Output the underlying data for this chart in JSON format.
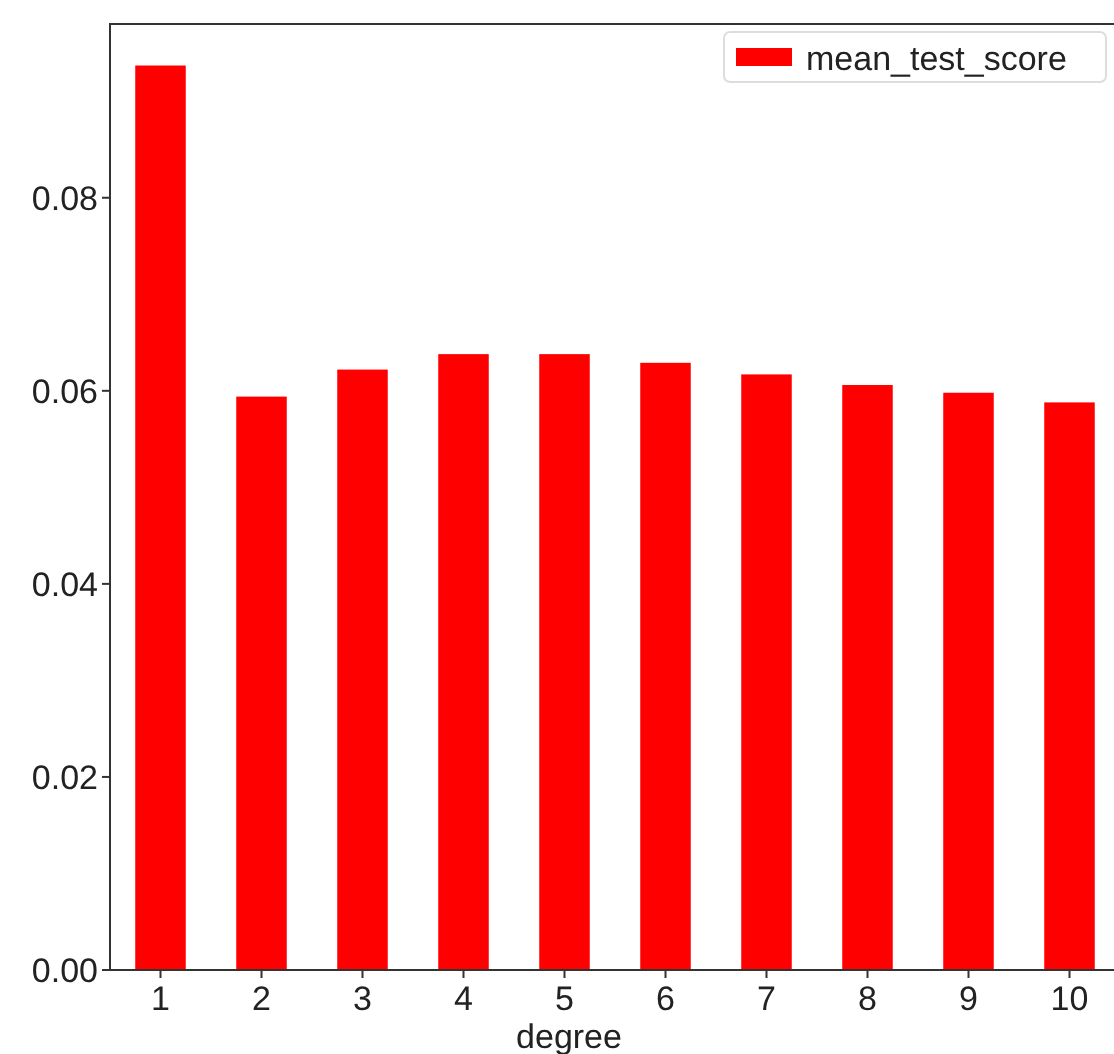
{
  "chart_data": {
    "type": "bar",
    "xlabel": "degree",
    "categories": [
      "1",
      "2",
      "3",
      "4",
      "5",
      "6",
      "7",
      "8",
      "9",
      "10"
    ],
    "series": [
      {
        "name": "mean_test_score",
        "color": "#ff0000",
        "values": [
          0.0937,
          0.0594,
          0.0622,
          0.0638,
          0.0638,
          0.0629,
          0.0617,
          0.0606,
          0.0598,
          0.0588
        ]
      }
    ],
    "ylim": [
      0,
      0.098
    ],
    "yticks": [
      {
        "value": 0,
        "label": "0.00"
      },
      {
        "value": 0.02,
        "label": "0.02"
      },
      {
        "value": 0.04,
        "label": "0.04"
      },
      {
        "value": 0.06,
        "label": "0.06"
      },
      {
        "value": 0.08,
        "label": "0.08"
      }
    ],
    "grid": false,
    "legend": "top right"
  }
}
